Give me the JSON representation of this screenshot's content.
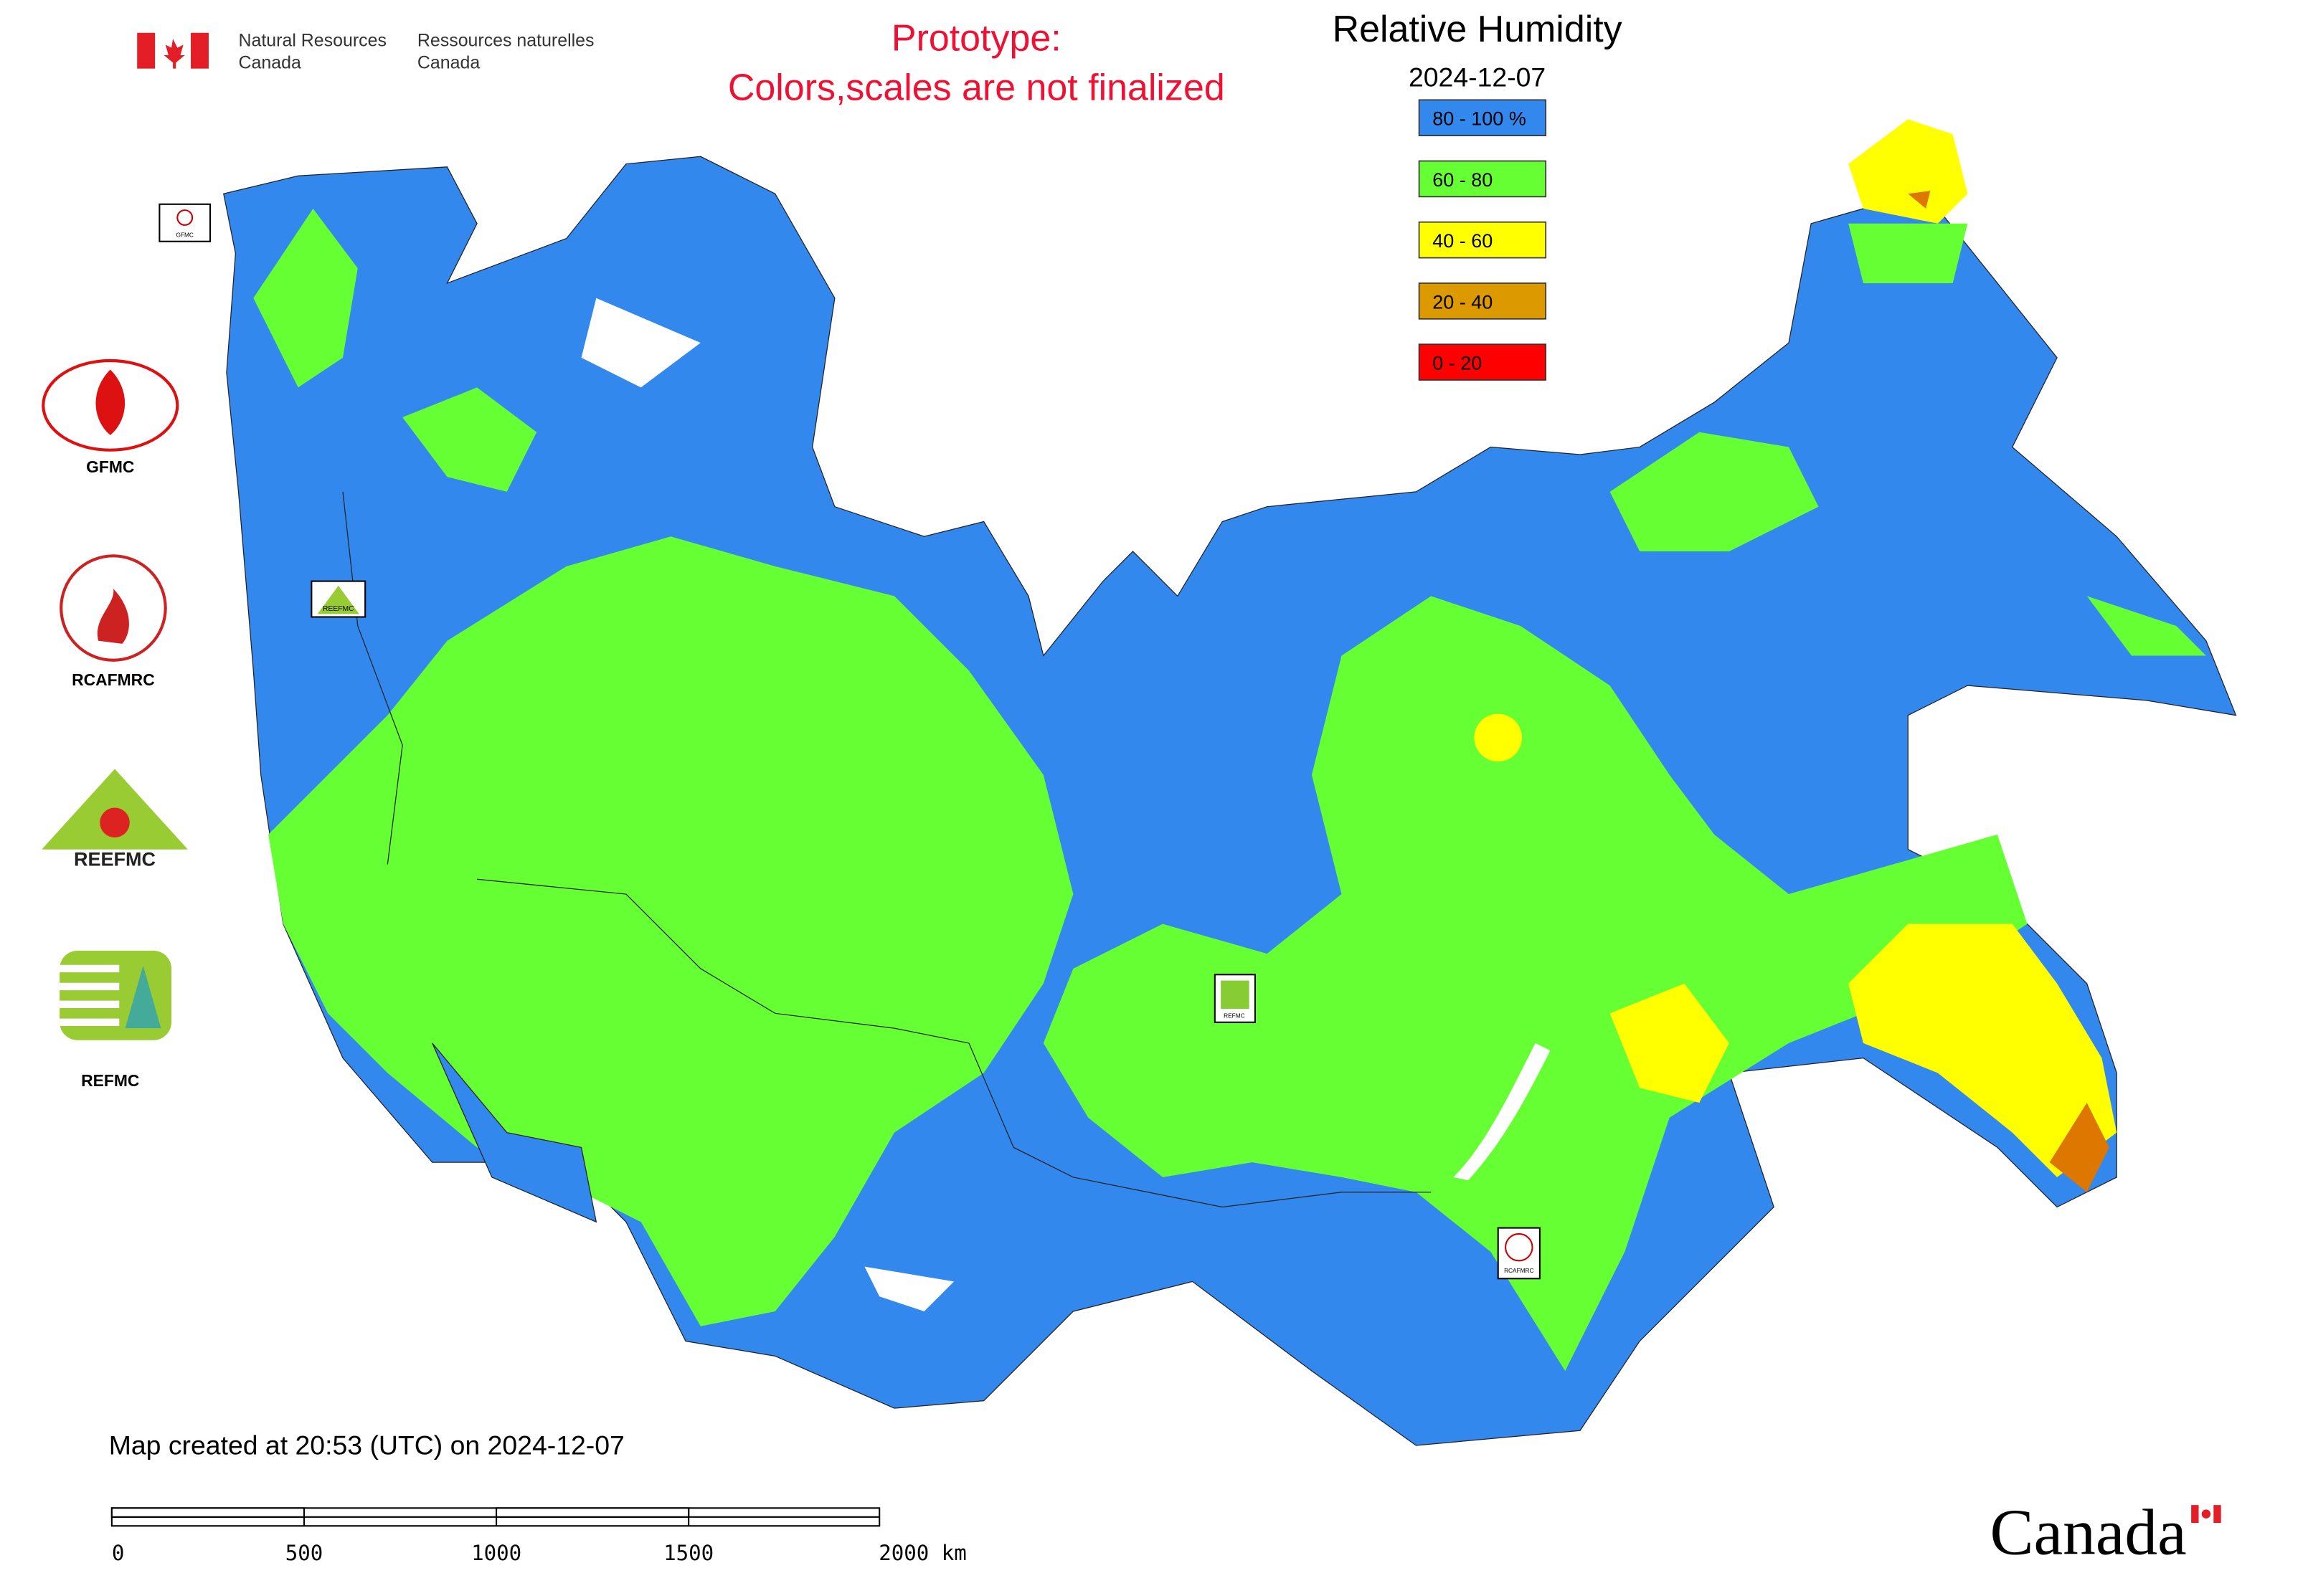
{
  "header": {
    "department_en": [
      "Natural Resources",
      "Canada"
    ],
    "department_fr": [
      "Ressources naturelles",
      "Canada"
    ],
    "notice": [
      "Prototype:",
      "Colors,scales are not finalized"
    ]
  },
  "map": {
    "title": "Relative Humidity",
    "date": "2024-12-07",
    "legend": [
      {
        "label": "80 - 100 %",
        "color": "#3388ee"
      },
      {
        "label": "60 - 80",
        "color": "#66ff33"
      },
      {
        "label": "40 - 60",
        "color": "#ffff00"
      },
      {
        "label": "20 - 40",
        "color": "#dd9900"
      },
      {
        "label": "0 - 20",
        "color": "#ff0000"
      }
    ],
    "markers": [
      "GFMC",
      "REEFMC",
      "REFMC",
      "RCAFMRC"
    ]
  },
  "logos": [
    "GFMC",
    "RCAFMRC",
    "REEFMC",
    "REFMC"
  ],
  "footer": {
    "created": "Map created at 20:53 (UTC) on 2024-12-07",
    "scale_labels": [
      "0",
      "500",
      "1000",
      "1500",
      "2000 km"
    ],
    "wordmark": "Canada"
  }
}
